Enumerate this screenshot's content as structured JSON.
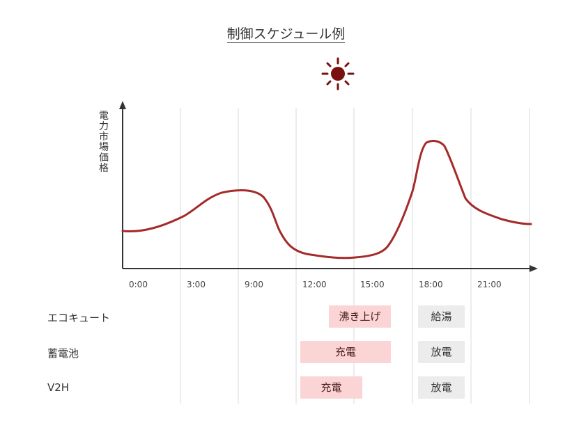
{
  "title": "制御スケジュール例",
  "sun_icon": "sun-icon",
  "colors": {
    "curve": "#a52a2a",
    "sun": "#7a1010",
    "pink": "#fbd5d5",
    "gray": "#ececec"
  },
  "chart_data": {
    "type": "line",
    "ylabel": "電力市場価格",
    "x_ticks": [
      "0:00",
      "3:00",
      "9:00",
      "12:00",
      "15:00",
      "18:00",
      "21:00"
    ]
  },
  "rows": [
    {
      "label": "エコキュート",
      "blocks": [
        {
          "text": "沸き上げ",
          "style": "pink"
        },
        {
          "text": "給湯",
          "style": "gray"
        }
      ]
    },
    {
      "label": "蓄電池",
      "blocks": [
        {
          "text": "充電",
          "style": "pink"
        },
        {
          "text": "放電",
          "style": "gray"
        }
      ]
    },
    {
      "label": "V2H",
      "blocks": [
        {
          "text": "充電",
          "style": "pink"
        },
        {
          "text": "放電",
          "style": "gray"
        }
      ]
    }
  ]
}
